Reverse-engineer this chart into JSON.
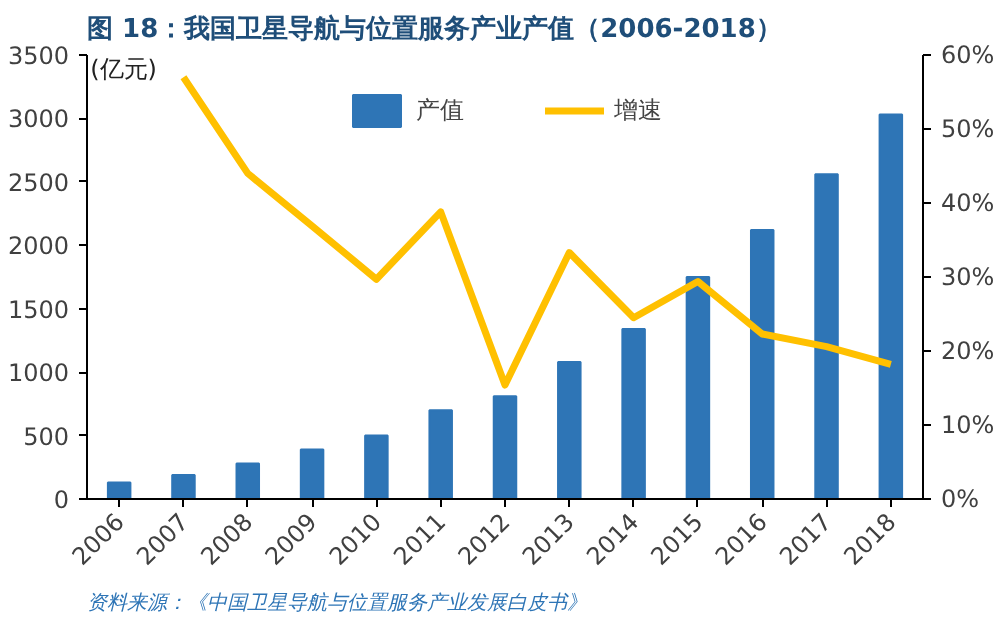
{
  "chart_data": {
    "type": "bar",
    "title": "图 18：我国卫星导航与位置服务产业产值（2006-2018）",
    "ylabel": "(亿元)",
    "categories": [
      "2006",
      "2007",
      "2008",
      "2009",
      "2010",
      "2011",
      "2012",
      "2013",
      "2014",
      "2015",
      "2016",
      "2017",
      "2018"
    ],
    "series": [
      {
        "name": "产值",
        "color": "#2e75b6",
        "values": [
          130,
          190,
          280,
          390,
          500,
          700,
          810,
          1080,
          1340,
          1750,
          2120,
          2560,
          3030
        ]
      },
      {
        "name": "增速",
        "type": "line",
        "axis": "y2",
        "color": "#ffc000",
        "values": [
          null,
          57.0,
          44.0,
          36.9,
          29.7,
          38.8,
          15.4,
          33.3,
          24.5,
          29.4,
          22.3,
          20.6,
          18.2
        ]
      }
    ],
    "ylim": [
      0,
      3500
    ],
    "yticks": [
      0,
      500,
      1000,
      1500,
      2000,
      2500,
      3000,
      3500
    ],
    "y2lim": [
      0,
      60
    ],
    "y2ticks": [
      {
        "value": 0,
        "label": "0%"
      },
      {
        "value": 10,
        "label": "10%"
      },
      {
        "value": 20,
        "label": "20%"
      },
      {
        "value": 30,
        "label": "30%"
      },
      {
        "value": 40,
        "label": "40%"
      },
      {
        "value": 50,
        "label": "50%"
      },
      {
        "value": 60,
        "label": "60%"
      }
    ],
    "grid": false,
    "legend": "top",
    "line_style": "solid",
    "annotations": [
      "资料来源：《中国卫星导航与位置服务产业发展白皮书》"
    ]
  }
}
